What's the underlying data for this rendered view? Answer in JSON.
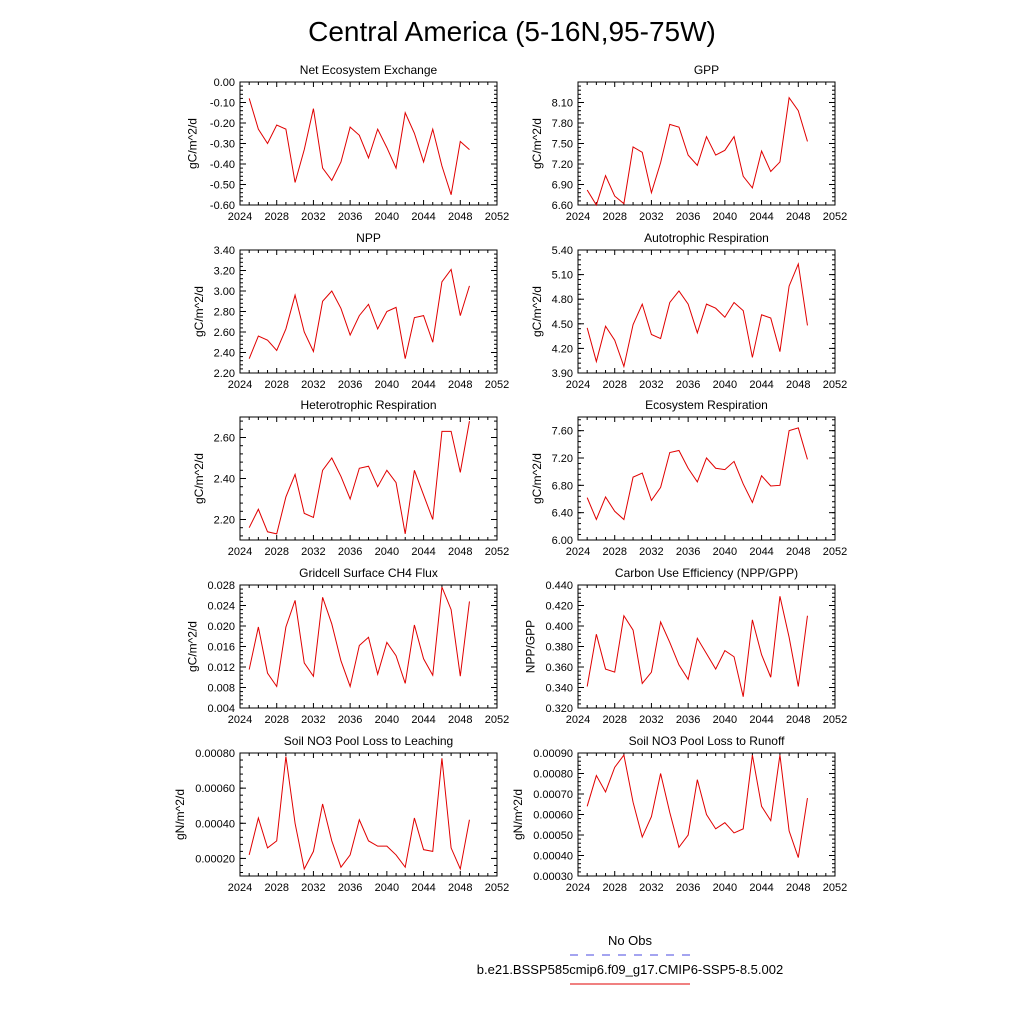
{
  "title": "Central America (5-16N,95-75W)",
  "legend": {
    "entries": [
      {
        "label": "No Obs",
        "color": "#4a4ae0",
        "dashed": true
      },
      {
        "label": "b.e21.BSSP585cmip6.f09_g17.CMIP6-SSP5-8.5.002",
        "color": "#e00000",
        "dashed": false
      }
    ]
  },
  "chart_data": [
    {
      "type": "line",
      "title": "Net Ecosystem Exchange",
      "ylabel": "gC/m^2/d",
      "xlim": [
        2024,
        2052
      ],
      "ylim": [
        -0.6,
        0.0
      ],
      "xticks": [
        2024,
        2028,
        2032,
        2036,
        2040,
        2044,
        2048,
        2052
      ],
      "yticks": [
        -0.6,
        -0.5,
        -0.4,
        -0.3,
        -0.2,
        -0.1,
        0.0
      ],
      "yticklabels": [
        "-0.60",
        "-0.50",
        "-0.40",
        "-0.30",
        "-0.20",
        "-0.10",
        "0.00"
      ],
      "series": [
        {
          "color": "#e00000",
          "x": [
            2025,
            2026,
            2027,
            2028,
            2029,
            2030,
            2031,
            2032,
            2033,
            2034,
            2035,
            2036,
            2037,
            2038,
            2039,
            2040,
            2041,
            2042,
            2043,
            2044,
            2045,
            2046,
            2047,
            2048,
            2049
          ],
          "values": [
            -0.08,
            -0.23,
            -0.3,
            -0.21,
            -0.23,
            -0.49,
            -0.33,
            -0.13,
            -0.42,
            -0.48,
            -0.39,
            -0.22,
            -0.26,
            -0.37,
            -0.23,
            -0.32,
            -0.42,
            -0.15,
            -0.25,
            -0.39,
            -0.23,
            -0.41,
            -0.55,
            -0.29,
            -0.33
          ]
        }
      ]
    },
    {
      "type": "line",
      "title": "GPP",
      "ylabel": "gC/m^2/d",
      "xlim": [
        2024,
        2052
      ],
      "ylim": [
        6.6,
        8.4
      ],
      "xticks": [
        2024,
        2028,
        2032,
        2036,
        2040,
        2044,
        2048,
        2052
      ],
      "yticks": [
        6.6,
        6.9,
        7.2,
        7.5,
        7.8,
        8.1
      ],
      "yticklabels": [
        "6.60",
        "6.90",
        "7.20",
        "7.50",
        "7.80",
        "8.10"
      ],
      "series": [
        {
          "color": "#e00000",
          "x": [
            2025,
            2026,
            2027,
            2028,
            2029,
            2030,
            2031,
            2032,
            2033,
            2034,
            2035,
            2036,
            2037,
            2038,
            2039,
            2040,
            2041,
            2042,
            2043,
            2044,
            2045,
            2046,
            2047,
            2048,
            2049
          ],
          "values": [
            6.82,
            6.6,
            7.03,
            6.73,
            6.62,
            7.45,
            7.37,
            6.78,
            7.22,
            7.78,
            7.74,
            7.33,
            7.18,
            7.6,
            7.33,
            7.4,
            7.6,
            7.02,
            6.85,
            7.39,
            7.09,
            7.23,
            8.17,
            7.98,
            7.53
          ]
        }
      ]
    },
    {
      "type": "line",
      "title": "NPP",
      "ylabel": "gC/m^2/d",
      "xlim": [
        2024,
        2052
      ],
      "ylim": [
        2.2,
        3.4
      ],
      "xticks": [
        2024,
        2028,
        2032,
        2036,
        2040,
        2044,
        2048,
        2052
      ],
      "yticks": [
        2.2,
        2.4,
        2.6,
        2.8,
        3.0,
        3.2,
        3.4
      ],
      "yticklabels": [
        "2.20",
        "2.40",
        "2.60",
        "2.80",
        "3.00",
        "3.20",
        "3.40"
      ],
      "series": [
        {
          "color": "#e00000",
          "x": [
            2025,
            2026,
            2027,
            2028,
            2029,
            2030,
            2031,
            2032,
            2033,
            2034,
            2035,
            2036,
            2037,
            2038,
            2039,
            2040,
            2041,
            2042,
            2043,
            2044,
            2045,
            2046,
            2047,
            2048,
            2049
          ],
          "values": [
            2.34,
            2.56,
            2.52,
            2.42,
            2.63,
            2.96,
            2.6,
            2.41,
            2.9,
            3.0,
            2.83,
            2.57,
            2.76,
            2.87,
            2.63,
            2.8,
            2.84,
            2.34,
            2.74,
            2.76,
            2.5,
            3.09,
            3.21,
            2.76,
            3.05
          ]
        }
      ]
    },
    {
      "type": "line",
      "title": "Autotrophic Respiration",
      "ylabel": "gC/m^2/d",
      "xlim": [
        2024,
        2052
      ],
      "ylim": [
        3.9,
        5.4
      ],
      "xticks": [
        2024,
        2028,
        2032,
        2036,
        2040,
        2044,
        2048,
        2052
      ],
      "yticks": [
        3.9,
        4.2,
        4.5,
        4.8,
        5.1,
        5.4
      ],
      "yticklabels": [
        "3.90",
        "4.20",
        "4.50",
        "4.80",
        "5.10",
        "5.40"
      ],
      "series": [
        {
          "color": "#e00000",
          "x": [
            2025,
            2026,
            2027,
            2028,
            2029,
            2030,
            2031,
            2032,
            2033,
            2034,
            2035,
            2036,
            2037,
            2038,
            2039,
            2040,
            2041,
            2042,
            2043,
            2044,
            2045,
            2046,
            2047,
            2048,
            2049
          ],
          "values": [
            4.45,
            4.04,
            4.47,
            4.3,
            3.98,
            4.49,
            4.74,
            4.37,
            4.32,
            4.76,
            4.9,
            4.74,
            4.39,
            4.74,
            4.69,
            4.58,
            4.76,
            4.66,
            4.09,
            4.61,
            4.57,
            4.16,
            4.96,
            5.23,
            4.48
          ]
        }
      ]
    },
    {
      "type": "line",
      "title": "Heterotrophic Respiration",
      "ylabel": "gC/m^2/d",
      "xlim": [
        2024,
        2052
      ],
      "ylim": [
        2.1,
        2.7
      ],
      "xticks": [
        2024,
        2028,
        2032,
        2036,
        2040,
        2044,
        2048,
        2052
      ],
      "yticks": [
        2.2,
        2.4,
        2.6
      ],
      "yticklabels": [
        "2.20",
        "2.40",
        "2.60"
      ],
      "series": [
        {
          "color": "#e00000",
          "x": [
            2025,
            2026,
            2027,
            2028,
            2029,
            2030,
            2031,
            2032,
            2033,
            2034,
            2035,
            2036,
            2037,
            2038,
            2039,
            2040,
            2041,
            2042,
            2043,
            2044,
            2045,
            2046,
            2047,
            2048,
            2049
          ],
          "values": [
            2.16,
            2.25,
            2.14,
            2.13,
            2.31,
            2.42,
            2.23,
            2.21,
            2.44,
            2.5,
            2.41,
            2.3,
            2.45,
            2.46,
            2.36,
            2.44,
            2.38,
            2.13,
            2.44,
            2.32,
            2.2,
            2.63,
            2.63,
            2.43,
            2.68
          ]
        }
      ]
    },
    {
      "type": "line",
      "title": "Ecosystem Respiration",
      "ylabel": "gC/m^2/d",
      "xlim": [
        2024,
        2052
      ],
      "ylim": [
        6.0,
        7.8
      ],
      "xticks": [
        2024,
        2028,
        2032,
        2036,
        2040,
        2044,
        2048,
        2052
      ],
      "yticks": [
        6.0,
        6.4,
        6.8,
        7.2,
        7.6
      ],
      "yticklabels": [
        "6.00",
        "6.40",
        "6.80",
        "7.20",
        "7.60"
      ],
      "series": [
        {
          "color": "#e00000",
          "x": [
            2025,
            2026,
            2027,
            2028,
            2029,
            2030,
            2031,
            2032,
            2033,
            2034,
            2035,
            2036,
            2037,
            2038,
            2039,
            2040,
            2041,
            2042,
            2043,
            2044,
            2045,
            2046,
            2047,
            2048,
            2049
          ],
          "values": [
            6.62,
            6.3,
            6.63,
            6.42,
            6.3,
            6.92,
            6.98,
            6.58,
            6.77,
            7.28,
            7.31,
            7.05,
            6.85,
            7.2,
            7.05,
            7.03,
            7.15,
            6.82,
            6.55,
            6.94,
            6.79,
            6.8,
            7.6,
            7.64,
            7.18
          ]
        }
      ]
    },
    {
      "type": "line",
      "title": "Gridcell Surface CH4 Flux",
      "ylabel": "gC/m^2/d",
      "xlim": [
        2024,
        2052
      ],
      "ylim": [
        0.004,
        0.028
      ],
      "xticks": [
        2024,
        2028,
        2032,
        2036,
        2040,
        2044,
        2048,
        2052
      ],
      "yticks": [
        0.004,
        0.008,
        0.012,
        0.016,
        0.02,
        0.024,
        0.028
      ],
      "yticklabels": [
        "0.004",
        "0.008",
        "0.012",
        "0.016",
        "0.020",
        "0.024",
        "0.028"
      ],
      "series": [
        {
          "color": "#e00000",
          "x": [
            2025,
            2026,
            2027,
            2028,
            2029,
            2030,
            2031,
            2032,
            2033,
            2034,
            2035,
            2036,
            2037,
            2038,
            2039,
            2040,
            2041,
            2042,
            2043,
            2044,
            2045,
            2046,
            2047,
            2048,
            2049
          ],
          "values": [
            0.0115,
            0.0198,
            0.0108,
            0.0082,
            0.0198,
            0.025,
            0.0128,
            0.0102,
            0.0256,
            0.0204,
            0.0132,
            0.0082,
            0.0162,
            0.0178,
            0.0106,
            0.0168,
            0.0142,
            0.0088,
            0.0202,
            0.0136,
            0.0104,
            0.0276,
            0.0232,
            0.0102,
            0.0248
          ]
        }
      ]
    },
    {
      "type": "line",
      "title": "Carbon Use Efficiency (NPP/GPP)",
      "ylabel": "NPP/GPP",
      "xlim": [
        2024,
        2052
      ],
      "ylim": [
        0.32,
        0.44
      ],
      "xticks": [
        2024,
        2028,
        2032,
        2036,
        2040,
        2044,
        2048,
        2052
      ],
      "yticks": [
        0.32,
        0.34,
        0.36,
        0.38,
        0.4,
        0.42,
        0.44
      ],
      "yticklabels": [
        "0.320",
        "0.340",
        "0.360",
        "0.380",
        "0.400",
        "0.420",
        "0.440"
      ],
      "series": [
        {
          "color": "#e00000",
          "x": [
            2025,
            2026,
            2027,
            2028,
            2029,
            2030,
            2031,
            2032,
            2033,
            2034,
            2035,
            2036,
            2037,
            2038,
            2039,
            2040,
            2041,
            2042,
            2043,
            2044,
            2045,
            2046,
            2047,
            2048,
            2049
          ],
          "values": [
            0.341,
            0.392,
            0.358,
            0.355,
            0.41,
            0.396,
            0.344,
            0.355,
            0.404,
            0.384,
            0.362,
            0.348,
            0.388,
            0.373,
            0.358,
            0.376,
            0.37,
            0.331,
            0.406,
            0.372,
            0.35,
            0.429,
            0.389,
            0.341,
            0.41
          ]
        }
      ]
    },
    {
      "type": "line",
      "title": "Soil NO3 Pool Loss to Leaching",
      "ylabel": "gN/m^2/d",
      "xlim": [
        2024,
        2052
      ],
      "ylim": [
        0.0001,
        0.0008
      ],
      "xticks": [
        2024,
        2028,
        2032,
        2036,
        2040,
        2044,
        2048,
        2052
      ],
      "yticks": [
        0.0002,
        0.0004,
        0.0006,
        0.0008
      ],
      "yticklabels": [
        "0.00020",
        "0.00040",
        "0.00060",
        "0.00080"
      ],
      "series": [
        {
          "color": "#e00000",
          "x": [
            2025,
            2026,
            2027,
            2028,
            2029,
            2030,
            2031,
            2032,
            2033,
            2034,
            2035,
            2036,
            2037,
            2038,
            2039,
            2040,
            2041,
            2042,
            2043,
            2044,
            2045,
            2046,
            2047,
            2048,
            2049
          ],
          "values": [
            0.00022,
            0.00043,
            0.00026,
            0.0003,
            0.00078,
            0.0004,
            0.00014,
            0.00024,
            0.00051,
            0.0003,
            0.00015,
            0.00022,
            0.00042,
            0.0003,
            0.00027,
            0.00027,
            0.00022,
            0.00015,
            0.00043,
            0.00025,
            0.00024,
            0.00077,
            0.00026,
            0.00014,
            0.00042
          ]
        }
      ]
    },
    {
      "type": "line",
      "title": "Soil NO3 Pool Loss to Runoff",
      "ylabel": "gN/m^2/d",
      "xlim": [
        2024,
        2052
      ],
      "ylim": [
        0.0003,
        0.0009
      ],
      "xticks": [
        2024,
        2028,
        2032,
        2036,
        2040,
        2044,
        2048,
        2052
      ],
      "yticks": [
        0.0003,
        0.0004,
        0.0005,
        0.0006,
        0.0007,
        0.0008,
        0.0009
      ],
      "yticklabels": [
        "0.00030",
        "0.00040",
        "0.00050",
        "0.00060",
        "0.00070",
        "0.00080",
        "0.00090"
      ],
      "series": [
        {
          "color": "#e00000",
          "x": [
            2025,
            2026,
            2027,
            2028,
            2029,
            2030,
            2031,
            2032,
            2033,
            2034,
            2035,
            2036,
            2037,
            2038,
            2039,
            2040,
            2041,
            2042,
            2043,
            2044,
            2045,
            2046,
            2047,
            2048,
            2049
          ],
          "values": [
            0.00064,
            0.00079,
            0.00071,
            0.00083,
            0.00089,
            0.00066,
            0.00049,
            0.00059,
            0.0008,
            0.00061,
            0.00044,
            0.0005,
            0.00077,
            0.0006,
            0.00053,
            0.00056,
            0.00051,
            0.00053,
            0.00089,
            0.00064,
            0.00057,
            0.00089,
            0.00052,
            0.00039,
            0.00068
          ]
        }
      ]
    }
  ]
}
